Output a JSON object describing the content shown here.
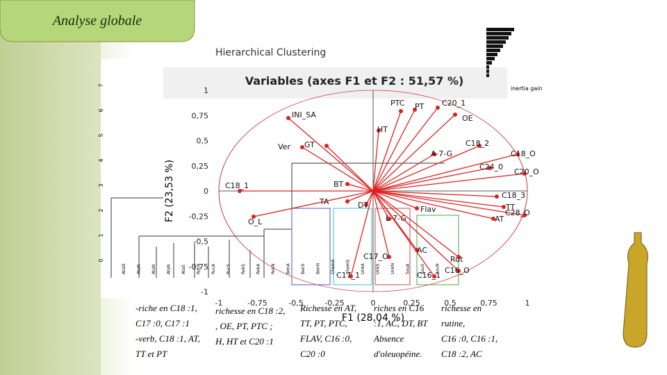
{
  "header": {
    "title": "Analyse globale"
  },
  "dendrogram": {
    "title": "Hierarchical Clustering",
    "legend": "inertia gain",
    "yticks": [
      "0",
      "1",
      "2",
      "3",
      "4",
      "5",
      "6",
      "7"
    ],
    "leaves": [
      "AtaSl",
      "AtaN",
      "AtaN",
      "AtaN",
      "AtaS",
      "RucN",
      "RucA",
      "RucS",
      "RekS",
      "RekA",
      "RekN",
      "BenA",
      "BenS",
      "BenN",
      "ChemA",
      "ChemS",
      "UnkA",
      "UnkS",
      "UnkN",
      "SauA",
      "SauS",
      "SauN"
    ]
  },
  "biplot": {
    "title": "Variables (axes F1 et F2 : 51,57 %)",
    "x_label": "F1 (28,04 %)",
    "y_label": "F2 (23,53 %)",
    "xticks": [
      "-1",
      "-0,75",
      "-0,5",
      "-0,25",
      "0",
      "0,25",
      "0,5",
      "0,75",
      "1"
    ],
    "yticks": [
      "-1",
      "-0,75",
      "-0,5",
      "-0,25",
      "0",
      "0,25",
      "0,5",
      "0,75",
      "1"
    ],
    "variables": [
      "PTC",
      "PT",
      "C20_1",
      "OE",
      "HT",
      "INI_SA",
      "Ver",
      "GT",
      "C18_2",
      "A-7-G",
      "C18_O",
      "C24_0",
      "C20_O",
      "BT",
      "C18_1",
      "TA",
      "DT",
      "C18_3",
      "TT",
      "Flav",
      "AT",
      "C28_O",
      "O_L",
      "L-7-G",
      "AC",
      "C17_O",
      "Rut",
      "C16_O",
      "C17_1",
      "C16_1"
    ]
  },
  "notes": [
    [
      "-riche en C18 :1,",
      "C17 :0, C17 :1",
      "-verb, C18 :1, AT,",
      "TT et PT"
    ],
    [
      "richesse en C18 :2,",
      ", OE, PT, PTC ;",
      "H, HT et C20 :1"
    ],
    [
      "Richesse en AT,",
      "TT, PT, PTC,",
      "FLAV, C16 :0,",
      "C20 :0"
    ],
    [
      "riches en C16",
      ":1, AC, DT, BT",
      "Absence",
      "d'oleuopéine."
    ],
    [
      "richesse en",
      "rutine,",
      "C16 :0, C16 :1,",
      "C18 :2, AC"
    ]
  ]
}
